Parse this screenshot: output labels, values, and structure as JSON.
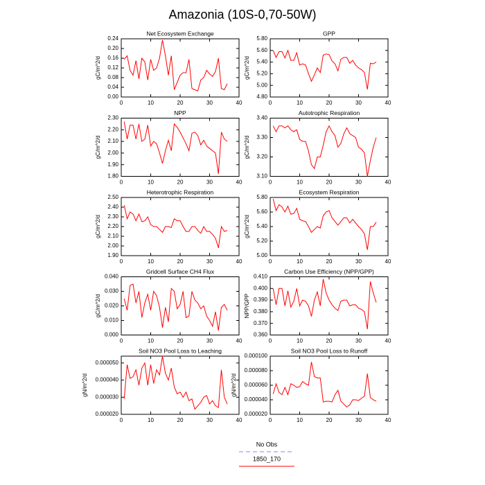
{
  "title": "Amazonia (10S-0,70-50W)",
  "legend": [
    {
      "name": "No Obs",
      "color": "#8080ff",
      "dashed": true
    },
    {
      "name": "1850_170",
      "color": "#ff0000",
      "dashed": false
    }
  ],
  "chart_data": [
    {
      "type": "line",
      "title": "Net Ecosystem Exchange",
      "ylabel": "gC/m^2/d",
      "color": "#ff0000",
      "x": [
        1,
        2,
        3,
        4,
        5,
        6,
        7,
        8,
        9,
        10,
        11,
        12,
        13,
        14,
        15,
        16,
        17,
        18,
        19,
        20,
        21,
        22,
        23,
        24,
        25,
        26,
        27,
        28,
        29,
        30,
        31,
        32,
        33,
        34,
        35,
        36
      ],
      "values": [
        0.155,
        0.17,
        0.11,
        0.09,
        0.15,
        0.075,
        0.16,
        0.145,
        0.07,
        0.155,
        0.11,
        0.12,
        0.16,
        0.235,
        0.17,
        0.09,
        0.17,
        0.03,
        0.06,
        0.09,
        0.1,
        0.1,
        0.155,
        0.035,
        0.03,
        0.025,
        0.07,
        0.08,
        0.11,
        0.095,
        0.085,
        0.105,
        0.16,
        0.035,
        0.03,
        0.055
      ],
      "xlim": [
        0,
        40
      ],
      "xticks": [
        0,
        10,
        20,
        30,
        40
      ],
      "ylim": [
        0,
        0.24
      ],
      "yticks": [
        {
          "value": 0,
          "label": "0.00"
        },
        0.04,
        0.08,
        0.12,
        0.16,
        {
          "value": 0.2,
          "label": "0.20"
        },
        0.24
      ]
    },
    {
      "type": "line",
      "title": "GPP",
      "ylabel": "gC/m^2/d",
      "color": "#ff0000",
      "x": [
        1,
        2,
        3,
        4,
        5,
        6,
        7,
        8,
        9,
        10,
        11,
        12,
        13,
        14,
        15,
        16,
        17,
        18,
        19,
        20,
        21,
        22,
        23,
        24,
        25,
        26,
        27,
        28,
        29,
        30,
        31,
        32,
        33,
        34,
        35,
        36
      ],
      "values": [
        5.6,
        5.48,
        5.58,
        5.58,
        5.47,
        5.6,
        5.43,
        5.43,
        5.56,
        5.35,
        5.37,
        5.35,
        5.2,
        5.07,
        5.18,
        5.3,
        5.22,
        5.52,
        5.54,
        5.53,
        5.42,
        5.37,
        5.25,
        5.45,
        5.48,
        5.48,
        5.38,
        5.43,
        5.35,
        5.3,
        5.27,
        5.22,
        4.93,
        5.38,
        5.37,
        5.4
      ],
      "xlim": [
        0,
        40
      ],
      "xticks": [
        0,
        10,
        20,
        30,
        40
      ],
      "ylim": [
        4.8,
        5.8
      ],
      "yticks": [
        {
          "value": 4.8,
          "label": "4.80"
        },
        {
          "value": 5,
          "label": "5.00"
        },
        {
          "value": 5.2,
          "label": "5.20"
        },
        {
          "value": 5.4,
          "label": "5.40"
        },
        {
          "value": 5.6,
          "label": "5.60"
        },
        {
          "value": 5.8,
          "label": "5.80"
        }
      ]
    },
    {
      "type": "line",
      "title": "NPP",
      "ylabel": "gC/m^2/d",
      "color": "#ff0000",
      "x": [
        1,
        2,
        3,
        4,
        5,
        6,
        7,
        8,
        9,
        10,
        11,
        12,
        13,
        14,
        15,
        16,
        17,
        18,
        19,
        20,
        21,
        22,
        23,
        24,
        25,
        26,
        27,
        28,
        29,
        30,
        31,
        32,
        33,
        34,
        35,
        36
      ],
      "values": [
        2.27,
        2.12,
        2.24,
        2.24,
        2.12,
        2.25,
        2.1,
        2.12,
        2.24,
        2.06,
        2.1,
        2.08,
        2.0,
        1.91,
        2.02,
        2.11,
        2.02,
        2.25,
        2.22,
        2.18,
        2.13,
        2.08,
        2.02,
        2.17,
        2.18,
        2.15,
        2.07,
        2.11,
        2.06,
        2.04,
        2.02,
        2.0,
        1.82,
        2.18,
        2.12,
        2.1
      ],
      "xlim": [
        0,
        40
      ],
      "xticks": [
        0,
        10,
        20,
        30,
        40
      ],
      "ylim": [
        1.8,
        2.3
      ],
      "yticks": [
        {
          "value": 1.8,
          "label": "1.80"
        },
        {
          "value": 1.9,
          "label": "1.90"
        },
        {
          "value": 2,
          "label": "2.00"
        },
        {
          "value": 2.1,
          "label": "2.10"
        },
        {
          "value": 2.2,
          "label": "2.20"
        },
        {
          "value": 2.3,
          "label": "2.30"
        }
      ]
    },
    {
      "type": "line",
      "title": "Autotrophic Respiration",
      "ylabel": "gC/m^2/d",
      "color": "#ff0000",
      "x": [
        1,
        2,
        3,
        4,
        5,
        6,
        7,
        8,
        9,
        10,
        11,
        12,
        13,
        14,
        15,
        16,
        17,
        18,
        19,
        20,
        21,
        22,
        23,
        24,
        25,
        26,
        27,
        28,
        29,
        30,
        31,
        32,
        33,
        34,
        35,
        36
      ],
      "values": [
        3.36,
        3.33,
        3.36,
        3.36,
        3.35,
        3.36,
        3.34,
        3.33,
        3.34,
        3.29,
        3.28,
        3.28,
        3.23,
        3.16,
        3.14,
        3.2,
        3.2,
        3.26,
        3.33,
        3.36,
        3.33,
        3.31,
        3.25,
        3.27,
        3.32,
        3.35,
        3.32,
        3.31,
        3.3,
        3.25,
        3.24,
        3.22,
        3.1,
        3.18,
        3.25,
        3.3
      ],
      "xlim": [
        0,
        40
      ],
      "xticks": [
        0,
        10,
        20,
        30,
        40
      ],
      "ylim": [
        3.1,
        3.4
      ],
      "yticks": [
        {
          "value": 3.1,
          "label": "3.10"
        },
        {
          "value": 3.2,
          "label": "3.20"
        },
        {
          "value": 3.3,
          "label": "3.30"
        },
        {
          "value": 3.4,
          "label": "3.40"
        }
      ]
    },
    {
      "type": "line",
      "title": "Heterotrophic Respiration",
      "ylabel": "gC/m^2/d",
      "color": "#ff0000",
      "x": [
        1,
        2,
        3,
        4,
        5,
        6,
        7,
        8,
        9,
        10,
        11,
        12,
        13,
        14,
        15,
        16,
        17,
        18,
        19,
        20,
        21,
        22,
        23,
        24,
        25,
        26,
        27,
        28,
        29,
        30,
        31,
        32,
        33,
        34,
        35,
        36
      ],
      "values": [
        2.42,
        2.28,
        2.35,
        2.33,
        2.26,
        2.33,
        2.25,
        2.26,
        2.3,
        2.22,
        2.2,
        2.2,
        2.17,
        2.14,
        2.2,
        2.2,
        2.19,
        2.28,
        2.26,
        2.26,
        2.2,
        2.15,
        2.15,
        2.2,
        2.2,
        2.16,
        2.13,
        2.2,
        2.15,
        2.15,
        2.12,
        2.08,
        1.98,
        2.2,
        2.15,
        2.16
      ],
      "xlim": [
        0,
        40
      ],
      "xticks": [
        0,
        10,
        20,
        30,
        40
      ],
      "ylim": [
        1.9,
        2.5
      ],
      "yticks": [
        {
          "value": 1.9,
          "label": "1.90"
        },
        {
          "value": 2,
          "label": "2.00"
        },
        {
          "value": 2.1,
          "label": "2.10"
        },
        {
          "value": 2.2,
          "label": "2.20"
        },
        {
          "value": 2.3,
          "label": "2.30"
        },
        {
          "value": 2.4,
          "label": "2.40"
        },
        {
          "value": 2.5,
          "label": "2.50"
        }
      ]
    },
    {
      "type": "line",
      "title": "Ecosystem Respiration",
      "ylabel": "gC/m^2/d",
      "color": "#ff0000",
      "x": [
        1,
        2,
        3,
        4,
        5,
        6,
        7,
        8,
        9,
        10,
        11,
        12,
        13,
        14,
        15,
        16,
        17,
        18,
        19,
        20,
        21,
        22,
        23,
        24,
        25,
        26,
        27,
        28,
        29,
        30,
        31,
        32,
        33,
        34,
        35,
        36
      ],
      "values": [
        5.78,
        5.62,
        5.7,
        5.67,
        5.6,
        5.68,
        5.57,
        5.58,
        5.65,
        5.5,
        5.48,
        5.47,
        5.4,
        5.32,
        5.36,
        5.4,
        5.38,
        5.55,
        5.6,
        5.62,
        5.52,
        5.47,
        5.42,
        5.47,
        5.52,
        5.52,
        5.45,
        5.5,
        5.45,
        5.4,
        5.36,
        5.3,
        5.08,
        5.4,
        5.4,
        5.46
      ],
      "xlim": [
        0,
        40
      ],
      "xticks": [
        0,
        10,
        20,
        30,
        40
      ],
      "ylim": [
        5.0,
        5.8
      ],
      "yticks": [
        {
          "value": 5,
          "label": "5.00"
        },
        {
          "value": 5.2,
          "label": "5.20"
        },
        {
          "value": 5.4,
          "label": "5.40"
        },
        {
          "value": 5.6,
          "label": "5.60"
        },
        {
          "value": 5.8,
          "label": "5.80"
        }
      ]
    },
    {
      "type": "line",
      "title": "Gridcell Surface CH4 Flux",
      "ylabel": "gC/m^2/d",
      "color": "#ff0000",
      "x": [
        1,
        2,
        3,
        4,
        5,
        6,
        7,
        8,
        9,
        10,
        11,
        12,
        13,
        14,
        15,
        16,
        17,
        18,
        19,
        20,
        21,
        22,
        23,
        24,
        25,
        26,
        27,
        28,
        29,
        30,
        31,
        32,
        33,
        34,
        35,
        36
      ],
      "values": [
        0.025,
        0.017,
        0.034,
        0.035,
        0.022,
        0.03,
        0.012,
        0.022,
        0.028,
        0.017,
        0.03,
        0.027,
        0.019,
        0.005,
        0.019,
        0.009,
        0.032,
        0.03,
        0.018,
        0.021,
        0.03,
        0.012,
        0.013,
        0.03,
        0.024,
        0.022,
        0.018,
        0.02,
        0.013,
        0.01,
        0.006,
        0.016,
        0.003,
        0.019,
        0.021,
        0.017
      ],
      "xlim": [
        0,
        40
      ],
      "xticks": [
        0,
        10,
        20,
        30,
        40
      ],
      "ylim": [
        0,
        0.04
      ],
      "yticks": [
        {
          "value": 0,
          "label": "0.000"
        },
        {
          "value": 0.01,
          "label": "0.010"
        },
        {
          "value": 0.02,
          "label": "0.020"
        },
        {
          "value": 0.03,
          "label": "0.030"
        },
        {
          "value": 0.04,
          "label": "0.040"
        }
      ]
    },
    {
      "type": "line",
      "title": "Carbon Use Efficiency (NPP/GPP)",
      "ylabel": "NPP/GPP",
      "color": "#ff0000",
      "x": [
        1,
        2,
        3,
        4,
        5,
        6,
        7,
        8,
        9,
        10,
        11,
        12,
        13,
        14,
        15,
        16,
        17,
        18,
        19,
        20,
        21,
        22,
        23,
        24,
        25,
        26,
        27,
        28,
        29,
        30,
        31,
        32,
        33,
        34,
        35,
        36
      ],
      "values": [
        0.4,
        0.386,
        0.4,
        0.4,
        0.385,
        0.398,
        0.384,
        0.389,
        0.4,
        0.385,
        0.39,
        0.389,
        0.385,
        0.376,
        0.39,
        0.397,
        0.385,
        0.408,
        0.396,
        0.39,
        0.386,
        0.383,
        0.381,
        0.389,
        0.39,
        0.39,
        0.385,
        0.386,
        0.386,
        0.383,
        0.382,
        0.38,
        0.365,
        0.406,
        0.396,
        0.388
      ],
      "xlim": [
        0,
        40
      ],
      "xticks": [
        0,
        10,
        20,
        30,
        40
      ],
      "ylim": [
        0.36,
        0.41
      ],
      "yticks": [
        {
          "value": 0.36,
          "label": "0.360"
        },
        {
          "value": 0.37,
          "label": "0.370"
        },
        {
          "value": 0.38,
          "label": "0.380"
        },
        {
          "value": 0.39,
          "label": "0.390"
        },
        {
          "value": 0.4,
          "label": "0.400"
        },
        {
          "value": 0.41,
          "label": "0.410"
        }
      ]
    },
    {
      "type": "line",
      "title": "Soil NO3 Pool Loss to Leaching",
      "ylabel": "gN/m^2/d",
      "color": "#ff0000",
      "x": [
        1,
        2,
        3,
        4,
        5,
        6,
        7,
        8,
        9,
        10,
        11,
        12,
        13,
        14,
        15,
        16,
        17,
        18,
        19,
        20,
        21,
        22,
        23,
        24,
        25,
        26,
        27,
        28,
        29,
        30,
        31,
        32,
        33,
        34,
        35,
        36
      ],
      "values": [
        2.9e-05,
        4.9e-05,
        4.1e-05,
        4.2e-05,
        4.6e-05,
        3.7e-05,
        4.7e-05,
        5e-05,
        3.7e-05,
        4.9e-05,
        3.8e-05,
        4.6e-05,
        4.3e-05,
        5.4e-05,
        4.4e-05,
        4e-05,
        4.7e-05,
        3.6e-05,
        3.2e-05,
        3.3e-05,
        3e-05,
        3.3e-05,
        2.8e-05,
        2.9e-05,
        2.3e-05,
        2.5e-05,
        2.7e-05,
        3e-05,
        3.1e-05,
        2.6e-05,
        2.8e-05,
        2.5e-05,
        2.4e-05,
        4.6e-05,
        3e-05,
        2.6e-05
      ],
      "xlim": [
        0,
        40
      ],
      "xticks": [
        0,
        10,
        20,
        30,
        40
      ],
      "ylim": [
        2e-05,
        5.4e-05
      ],
      "yticks": [
        {
          "value": 2e-05,
          "label": "0.000020"
        },
        {
          "value": 3e-05,
          "label": "0.000030"
        },
        {
          "value": 4e-05,
          "label": "0.000040"
        },
        {
          "value": 5e-05,
          "label": "0.000050"
        }
      ]
    },
    {
      "type": "line",
      "title": "Soil NO3 Pool Loss to Runoff",
      "ylabel": "gN/m^2/d",
      "color": "#ff0000",
      "x": [
        1,
        2,
        3,
        4,
        5,
        6,
        7,
        8,
        9,
        10,
        11,
        12,
        13,
        14,
        15,
        16,
        17,
        18,
        19,
        20,
        21,
        22,
        23,
        24,
        25,
        26,
        27,
        28,
        29,
        30,
        31,
        32,
        33,
        34,
        35,
        36
      ],
      "values": [
        4.8e-05,
        6.2e-05,
        5e-05,
        4.7e-05,
        5.7e-05,
        4.7e-05,
        6.2e-05,
        6e-05,
        5.7e-05,
        5.8e-05,
        6.5e-05,
        6.2e-05,
        6e-05,
        9.2e-05,
        7.2e-05,
        7e-05,
        7e-05,
        3.7e-05,
        3.8e-05,
        3.8e-05,
        3.7e-05,
        4.7e-05,
        5.3e-05,
        3.8e-05,
        3.4e-05,
        3e-05,
        3.3e-05,
        4e-05,
        4e-05,
        3.9e-05,
        4.2e-05,
        4.5e-05,
        7.6e-05,
        4.3e-05,
        4e-05,
        3.8e-05
      ],
      "xlim": [
        0,
        40
      ],
      "xticks": [
        0,
        10,
        20,
        30,
        40
      ],
      "ylim": [
        2e-05,
        0.0001
      ],
      "yticks": [
        {
          "value": 2e-05,
          "label": "0.000020"
        },
        {
          "value": 4e-05,
          "label": "0.000040"
        },
        {
          "value": 6e-05,
          "label": "0.000060"
        },
        {
          "value": 8e-05,
          "label": "0.000080"
        },
        {
          "value": 0.0001,
          "label": "0.000100"
        }
      ]
    }
  ]
}
